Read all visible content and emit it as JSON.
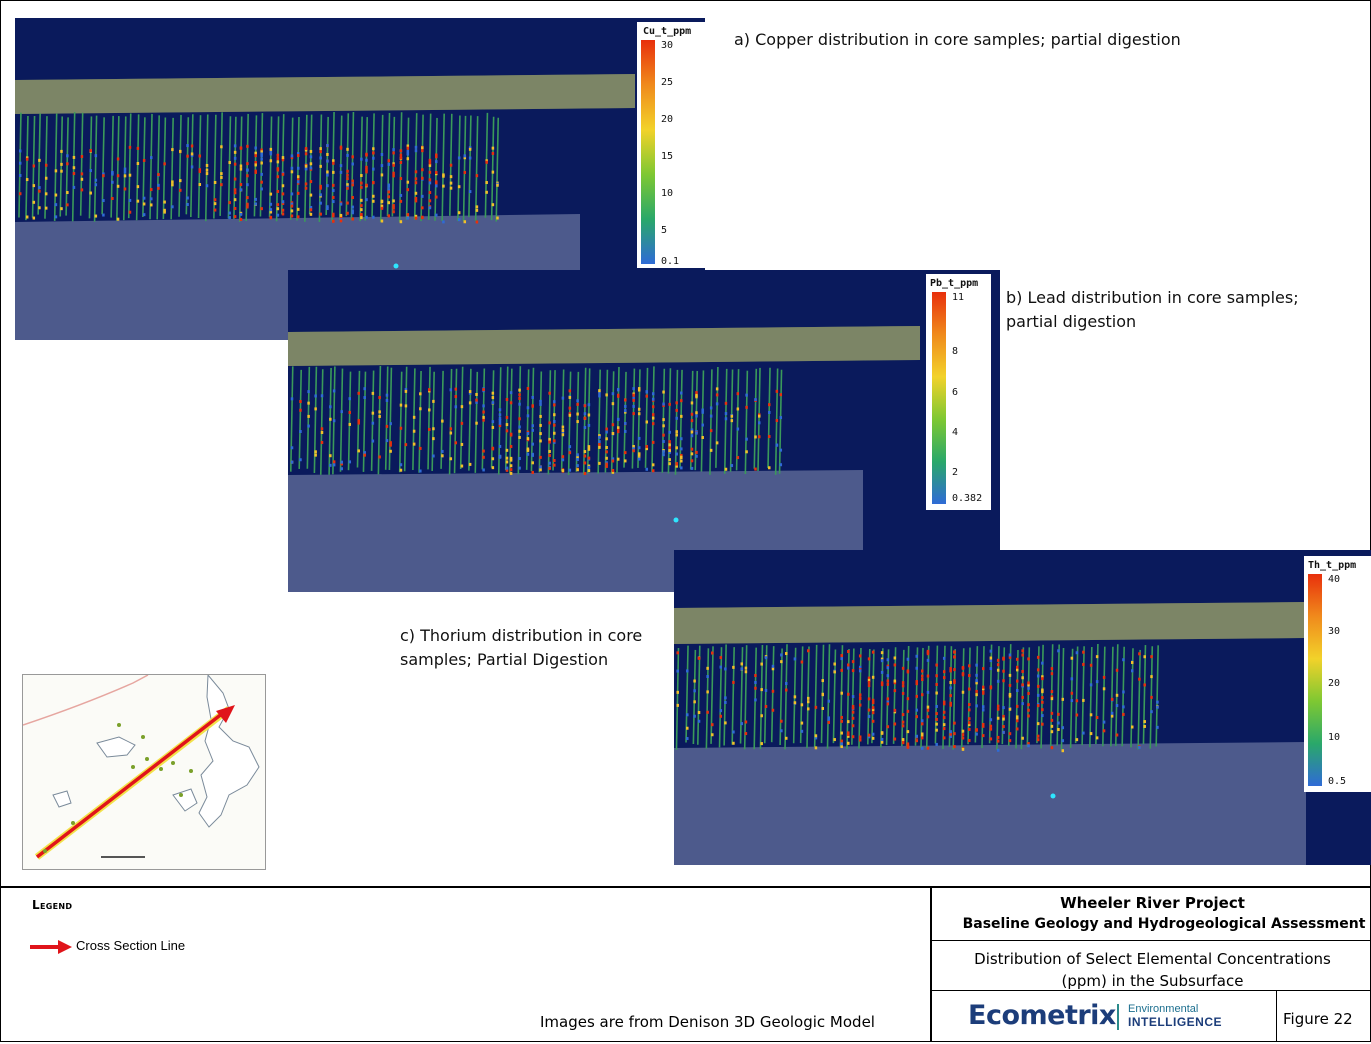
{
  "panels": [
    {
      "id": "cu",
      "caption": "a) Copper distribution in core samples; partial digestion",
      "colorbar_title": "Cu_t_ppm",
      "colorbar_ticks": [
        "30",
        "25",
        "20",
        "15",
        "10",
        "5",
        "0.1"
      ]
    },
    {
      "id": "pb",
      "caption_line1": "b) Lead distribution in core samples;",
      "caption_line2": "partial digestion",
      "colorbar_title": "Pb_t_ppm",
      "colorbar_ticks": [
        "11",
        "8",
        "6",
        "4",
        "2",
        "0.382"
      ]
    },
    {
      "id": "th",
      "caption_line1": "c) Thorium distribution in core",
      "caption_line2": "samples; Partial Digestion",
      "colorbar_title": "Th_t_ppm",
      "colorbar_ticks": [
        "40",
        "30",
        "20",
        "10",
        "0.5"
      ]
    }
  ],
  "colors": {
    "background": "#0a1a5c",
    "basement": "#4d5a8c",
    "high": "#e8300c",
    "low": "#2f6bd6",
    "legend_arrow": "#e0141a"
  },
  "legend": {
    "heading": "Legend",
    "items": [
      {
        "label": "Cross Section Line",
        "icon": "red-arrow-icon"
      }
    ]
  },
  "source_note": "Images are from Denison 3D Geologic Model",
  "title_block": {
    "project": "Wheeler River Project",
    "subtitle": "Baseline Geology and Hydrogeological Assessment",
    "description_line1": "Distribution of Select Elemental Concentrations",
    "description_line2": "(ppm) in the Subsurface",
    "logo_word": "Ecometrix",
    "logo_tag1": "Environmental",
    "logo_tag2": "INTELLIGENCE",
    "figure": "Figure 22"
  }
}
